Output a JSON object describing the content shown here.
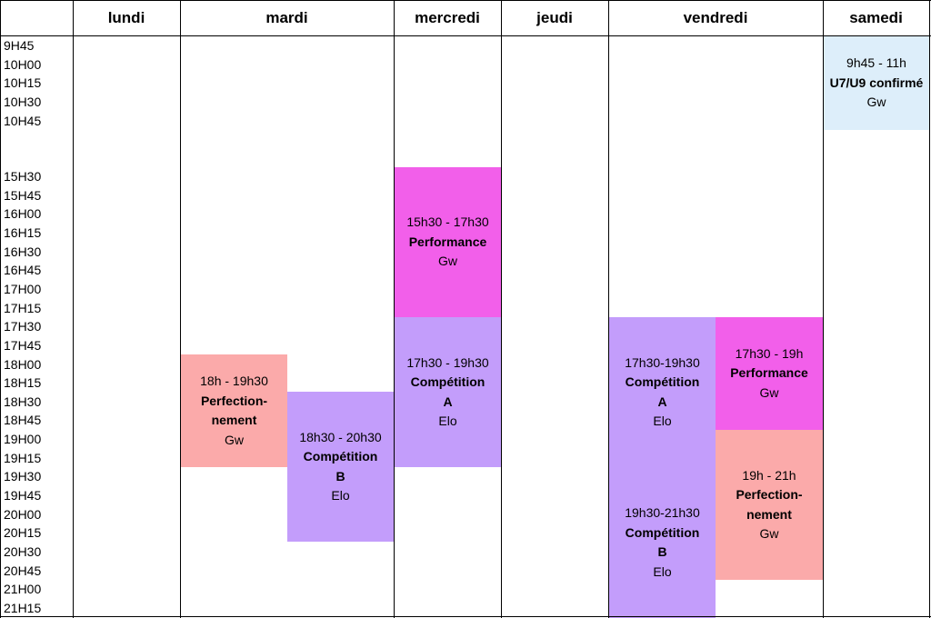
{
  "header": {
    "days": [
      "lundi",
      "mardi",
      "mercredi",
      "jeudi",
      "vendredi",
      "samedi"
    ]
  },
  "times": [
    "9H45",
    "10H00",
    "10H15",
    "10H30",
    "10H45",
    "15H30",
    "15H45",
    "16H00",
    "16H15",
    "16H30",
    "16H45",
    "17H00",
    "17H15",
    "17H30",
    "17H45",
    "18H00",
    "18H15",
    "18H30",
    "18H45",
    "19H00",
    "19H15",
    "19H30",
    "19H45",
    "20H00",
    "20H15",
    "20H30",
    "20H45",
    "21H00",
    "21H15"
  ],
  "events": [
    {
      "time": "9h45 - 11h",
      "title": [
        "U7/U9 confirmé"
      ],
      "coach": "Gw"
    },
    {
      "time": "15h30 - 17h30",
      "title": [
        "Performance"
      ],
      "coach": "Gw"
    },
    {
      "time": "17h30 - 19h30",
      "title": [
        "Compétition",
        "A"
      ],
      "coach": "Elo"
    },
    {
      "time": "18h - 19h30",
      "title": [
        "Perfection-",
        "nement"
      ],
      "coach": "Gw"
    },
    {
      "time": "18h30 - 20h30",
      "title": [
        "Compétition",
        "B"
      ],
      "coach": "Elo"
    },
    {
      "time": "17h30-19h30",
      "title": [
        "Compétition",
        "A"
      ],
      "coach": "Elo"
    },
    {
      "time": "19h30-21h30",
      "title": [
        "Compétition",
        "B"
      ],
      "coach": "Elo"
    },
    {
      "time": "17h30 - 19h",
      "title": [
        "Performance"
      ],
      "coach": "Gw"
    },
    {
      "time": "19h - 21h",
      "title": [
        "Perfection-",
        "nement"
      ],
      "coach": "Gw"
    }
  ]
}
